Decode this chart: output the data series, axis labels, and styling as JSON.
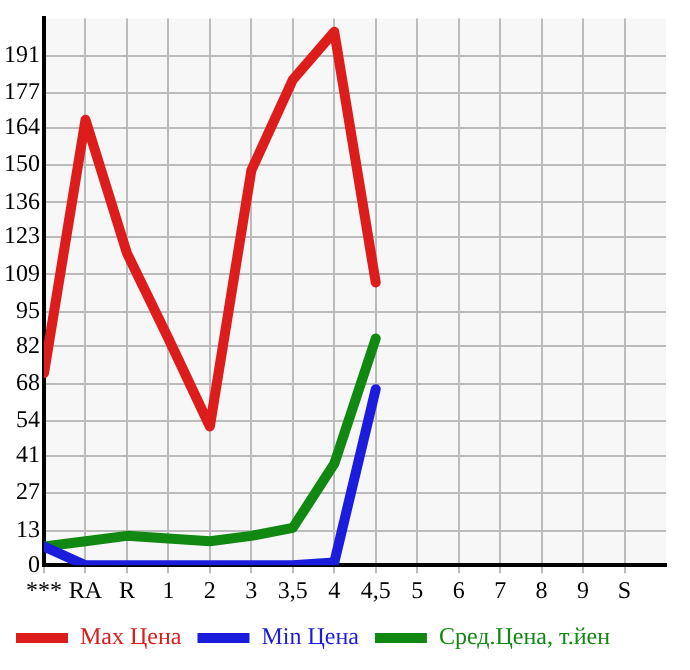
{
  "chart_data": {
    "type": "line",
    "categories": [
      "***",
      "RA",
      "R",
      "1",
      "2",
      "3",
      "3,5",
      "4",
      "4,5",
      "5",
      "6",
      "7",
      "8",
      "9",
      "S"
    ],
    "ylim": [
      0,
      205
    ],
    "yticks": [
      0,
      13,
      27,
      41,
      54,
      68,
      82,
      95,
      109,
      123,
      136,
      150,
      164,
      177,
      191
    ],
    "grid": true,
    "legend": "bottom",
    "marker": "none",
    "line_style": "solid",
    "series": [
      {
        "name": "Max Цена",
        "color": "#dd1c1c",
        "values": [
          72,
          167,
          117,
          85,
          52,
          148,
          182,
          200,
          106,
          null,
          null,
          null,
          null,
          null,
          null
        ]
      },
      {
        "name": "Min Цена",
        "color": "#1c1cdd",
        "values": [
          7,
          0,
          0,
          0,
          0,
          0,
          0,
          1,
          66,
          null,
          null,
          null,
          null,
          null,
          null
        ]
      },
      {
        "name": "Сред.Цена, т.йен",
        "color": "#118811",
        "values": [
          7,
          9,
          11,
          10,
          9,
          11,
          14,
          38,
          85,
          null,
          null,
          null,
          null,
          null,
          null
        ]
      }
    ]
  }
}
